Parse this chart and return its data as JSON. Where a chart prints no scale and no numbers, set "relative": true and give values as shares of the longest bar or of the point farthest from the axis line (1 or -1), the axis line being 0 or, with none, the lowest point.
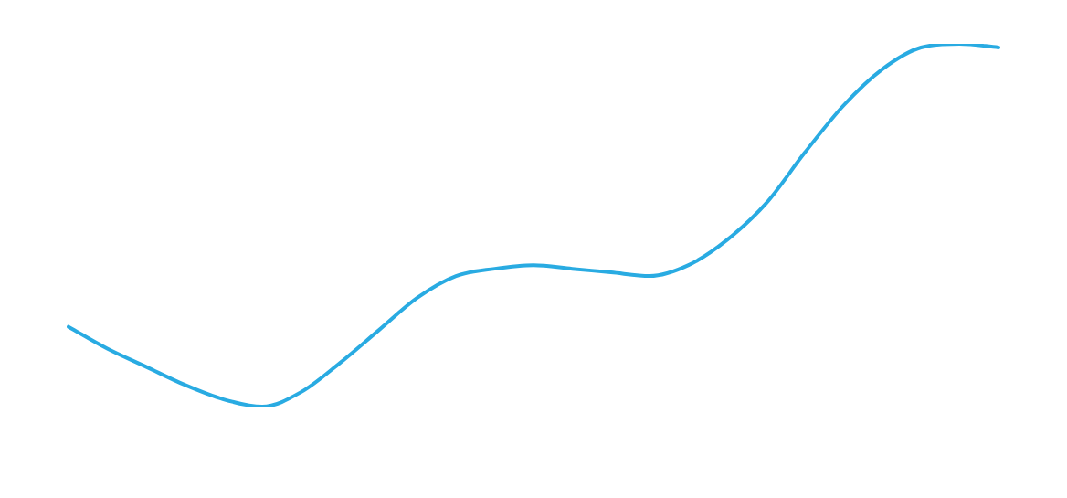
{
  "chart_data": {
    "type": "line",
    "relative": true,
    "categories": [
      null,
      null,
      null,
      null,
      null,
      null,
      null,
      null,
      null,
      null,
      null,
      null,
      null,
      null,
      null,
      null,
      null,
      null,
      null,
      null,
      null,
      null,
      null,
      null,
      null
    ],
    "series": [
      {
        "color": "#29abe2",
        "values": [
          0.22,
          0.16,
          0.11,
          0.06,
          0.02,
          0,
          0.04,
          0.12,
          0.21,
          0.3,
          0.36,
          0.38,
          0.39,
          0.38,
          0.37,
          0.36,
          0.39,
          0.46,
          0.56,
          0.7,
          0.83,
          0.93,
          0.99,
          1,
          0.99
        ]
      }
    ],
    "legend": false,
    "marker": "none",
    "line_style": "solid"
  }
}
